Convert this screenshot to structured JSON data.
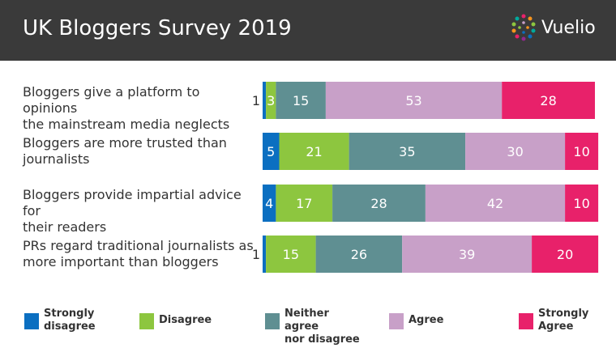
{
  "header": {
    "title": "UK Bloggers Survey 2019",
    "logo_text": "Vuelio",
    "background": "#3a3a3a"
  },
  "chart_data": {
    "type": "bar",
    "orientation": "horizontal",
    "stacked": true,
    "categories": [
      "Bloggers give a platform to opinions the mainstream media neglects",
      "Bloggers are more trusted than journalists",
      "Bloggers provide impartial advice for their readers",
      "PRs regard traditional journalists as more important than bloggers"
    ],
    "category_lines": [
      [
        "Bloggers give a platform to opinions",
        "the mainstream media neglects"
      ],
      [
        "Bloggers are more trusted than",
        "journalists"
      ],
      [
        "Bloggers provide impartial advice for",
        "their readers"
      ],
      [
        "PRs regard traditional journalists as",
        "more important than bloggers"
      ]
    ],
    "series": [
      {
        "name": "Strongly disagree",
        "legend_lines": [
          "Strongly",
          "disagree"
        ],
        "color": "#0b6fc1",
        "values": [
          1,
          5,
          4,
          1
        ]
      },
      {
        "name": "Disagree",
        "legend_lines": [
          "Disagree"
        ],
        "color": "#8dc63f",
        "values": [
          3,
          21,
          17,
          15
        ]
      },
      {
        "name": "Neither agree nor disagree",
        "legend_lines": [
          "Neither agree",
          "nor disagree"
        ],
        "color": "#5f8f92",
        "values": [
          15,
          35,
          28,
          26
        ]
      },
      {
        "name": "Agree",
        "legend_lines": [
          "Agree"
        ],
        "color": "#c8a0c8",
        "values": [
          53,
          30,
          42,
          39
        ]
      },
      {
        "name": "Strongly Agree",
        "legend_lines": [
          "Strongly",
          "Agree"
        ],
        "color": "#e8216a",
        "values": [
          28,
          10,
          10,
          20
        ]
      }
    ],
    "xlim": [
      0,
      100
    ],
    "legend_position": "bottom",
    "grid": false
  }
}
